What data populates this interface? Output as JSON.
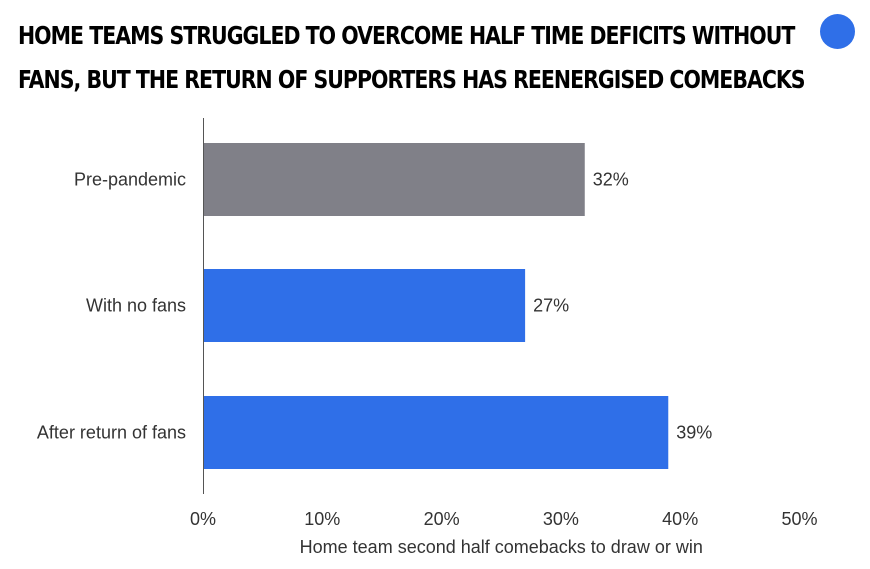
{
  "chart_data": {
    "type": "bar",
    "orientation": "horizontal",
    "title_lines": [
      "HOME TEAMS STRUGGLED TO OVERCOME HALF TIME DEFICITS WITHOUT",
      "FANS, BUT THE RETURN OF SUPPORTERS HAS REENERGISED COMEBACKS"
    ],
    "categories": [
      "Pre-pandemic",
      "With no fans",
      "After return of fans"
    ],
    "values": [
      32,
      27,
      39
    ],
    "value_labels": [
      "32%",
      "27%",
      "39%"
    ],
    "bar_colors": [
      "#808088",
      "#2f6fe8",
      "#2f6fe8"
    ],
    "xlabel": "Home team second half comebacks to draw or win",
    "xlim": [
      0,
      50
    ],
    "x_ticks": [
      0,
      10,
      20,
      30,
      40,
      50
    ],
    "x_tick_labels": [
      "0%",
      "10%",
      "20%",
      "30%",
      "40%",
      "50%"
    ],
    "grid": false
  },
  "brand": {
    "dot_color": "#2f6fe8"
  }
}
